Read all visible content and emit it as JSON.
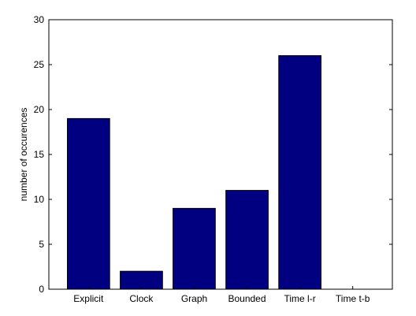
{
  "chart_data": {
    "type": "bar",
    "categories": [
      "Explicit",
      "Clock",
      "Graph",
      "Bounded",
      "Time l-r",
      "Time t-b"
    ],
    "values": [
      19,
      2,
      9,
      11,
      26,
      0
    ],
    "title": "",
    "xlabel": "",
    "ylabel": "number of occurences",
    "ylim": [
      0,
      30
    ],
    "yticks": [
      0,
      5,
      10,
      15,
      20,
      25,
      30
    ],
    "grid": false,
    "legend": "none",
    "bar_color": "#000080",
    "bar_edge_color": "#000000"
  }
}
